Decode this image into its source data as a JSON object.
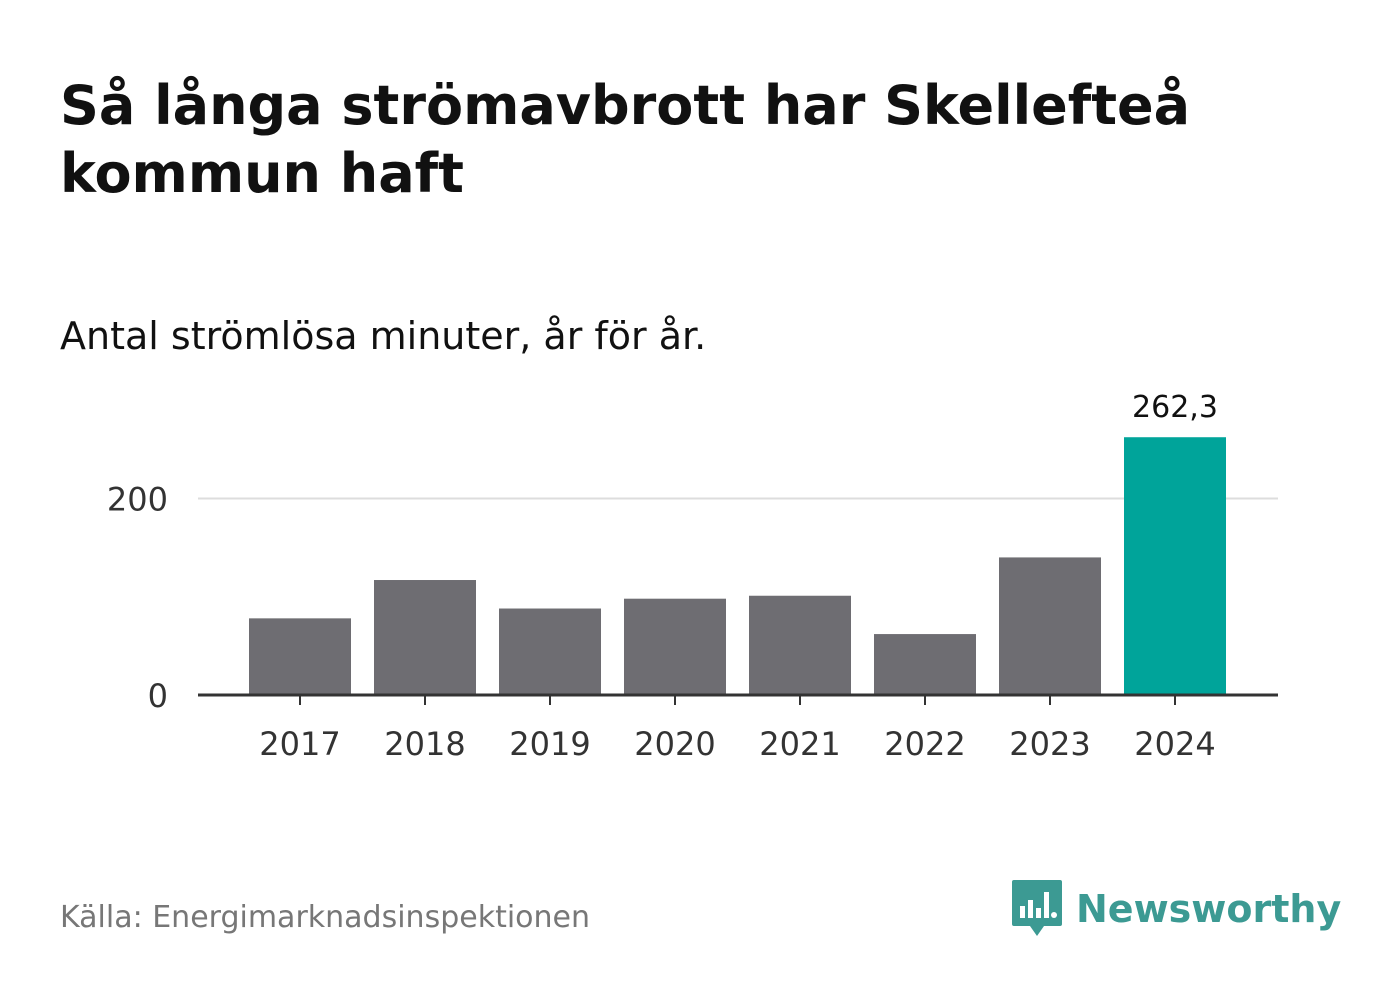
{
  "title": "Så långa strömavbrott har Skellefteå kommun haft",
  "subtitle": "Antal strömlösa minuter, år för år.",
  "source": "Källa: Energimarknadsinspektionen",
  "brand": {
    "name": "Newsworthy",
    "icon": "newsworthy-logo-icon",
    "color": "#3c9a93"
  },
  "colors": {
    "bar": "#6e6d72",
    "highlight": "#00a49a",
    "grid": "#dddddd",
    "axis": "#333333"
  },
  "chart_data": {
    "type": "bar",
    "title": "Så långa strömavbrott har Skellefteå kommun haft",
    "subtitle": "Antal strömlösa minuter, år för år.",
    "xlabel": "",
    "ylabel": "",
    "categories": [
      "2017",
      "2018",
      "2019",
      "2020",
      "2021",
      "2022",
      "2023",
      "2024"
    ],
    "values": [
      78,
      117,
      88,
      98,
      101,
      62,
      140,
      262.3
    ],
    "highlight_index": 7,
    "data_labels": [
      {
        "index": 7,
        "text": "262,3"
      }
    ],
    "yticks": [
      0,
      200
    ],
    "ylim": [
      0,
      290
    ],
    "grid": true,
    "legend": "none"
  }
}
